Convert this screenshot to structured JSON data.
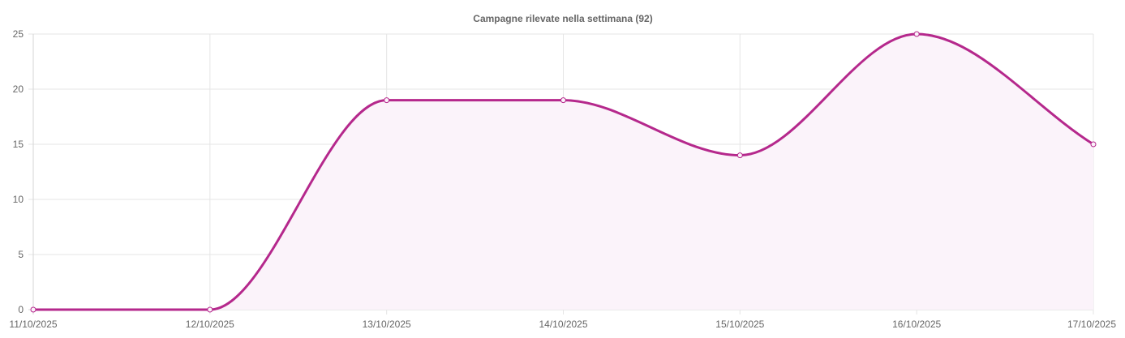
{
  "chart_data": {
    "type": "line",
    "title": "Campagne rilevate nella settimana (92)",
    "xlabel": "",
    "ylabel": "",
    "categories": [
      "11/10/2025",
      "12/10/2025",
      "13/10/2025",
      "14/10/2025",
      "15/10/2025",
      "16/10/2025",
      "17/10/2025"
    ],
    "series": [
      {
        "values": [
          0,
          0,
          19,
          19,
          14,
          25,
          15
        ]
      }
    ],
    "ylim": [
      0,
      25
    ],
    "yticks": [
      0,
      5,
      10,
      15,
      20,
      25
    ],
    "grid": true,
    "legend": "none",
    "line_color": "#b5288c",
    "fill_color": "#fbf3fa",
    "area_fill": true,
    "smooth": true
  }
}
